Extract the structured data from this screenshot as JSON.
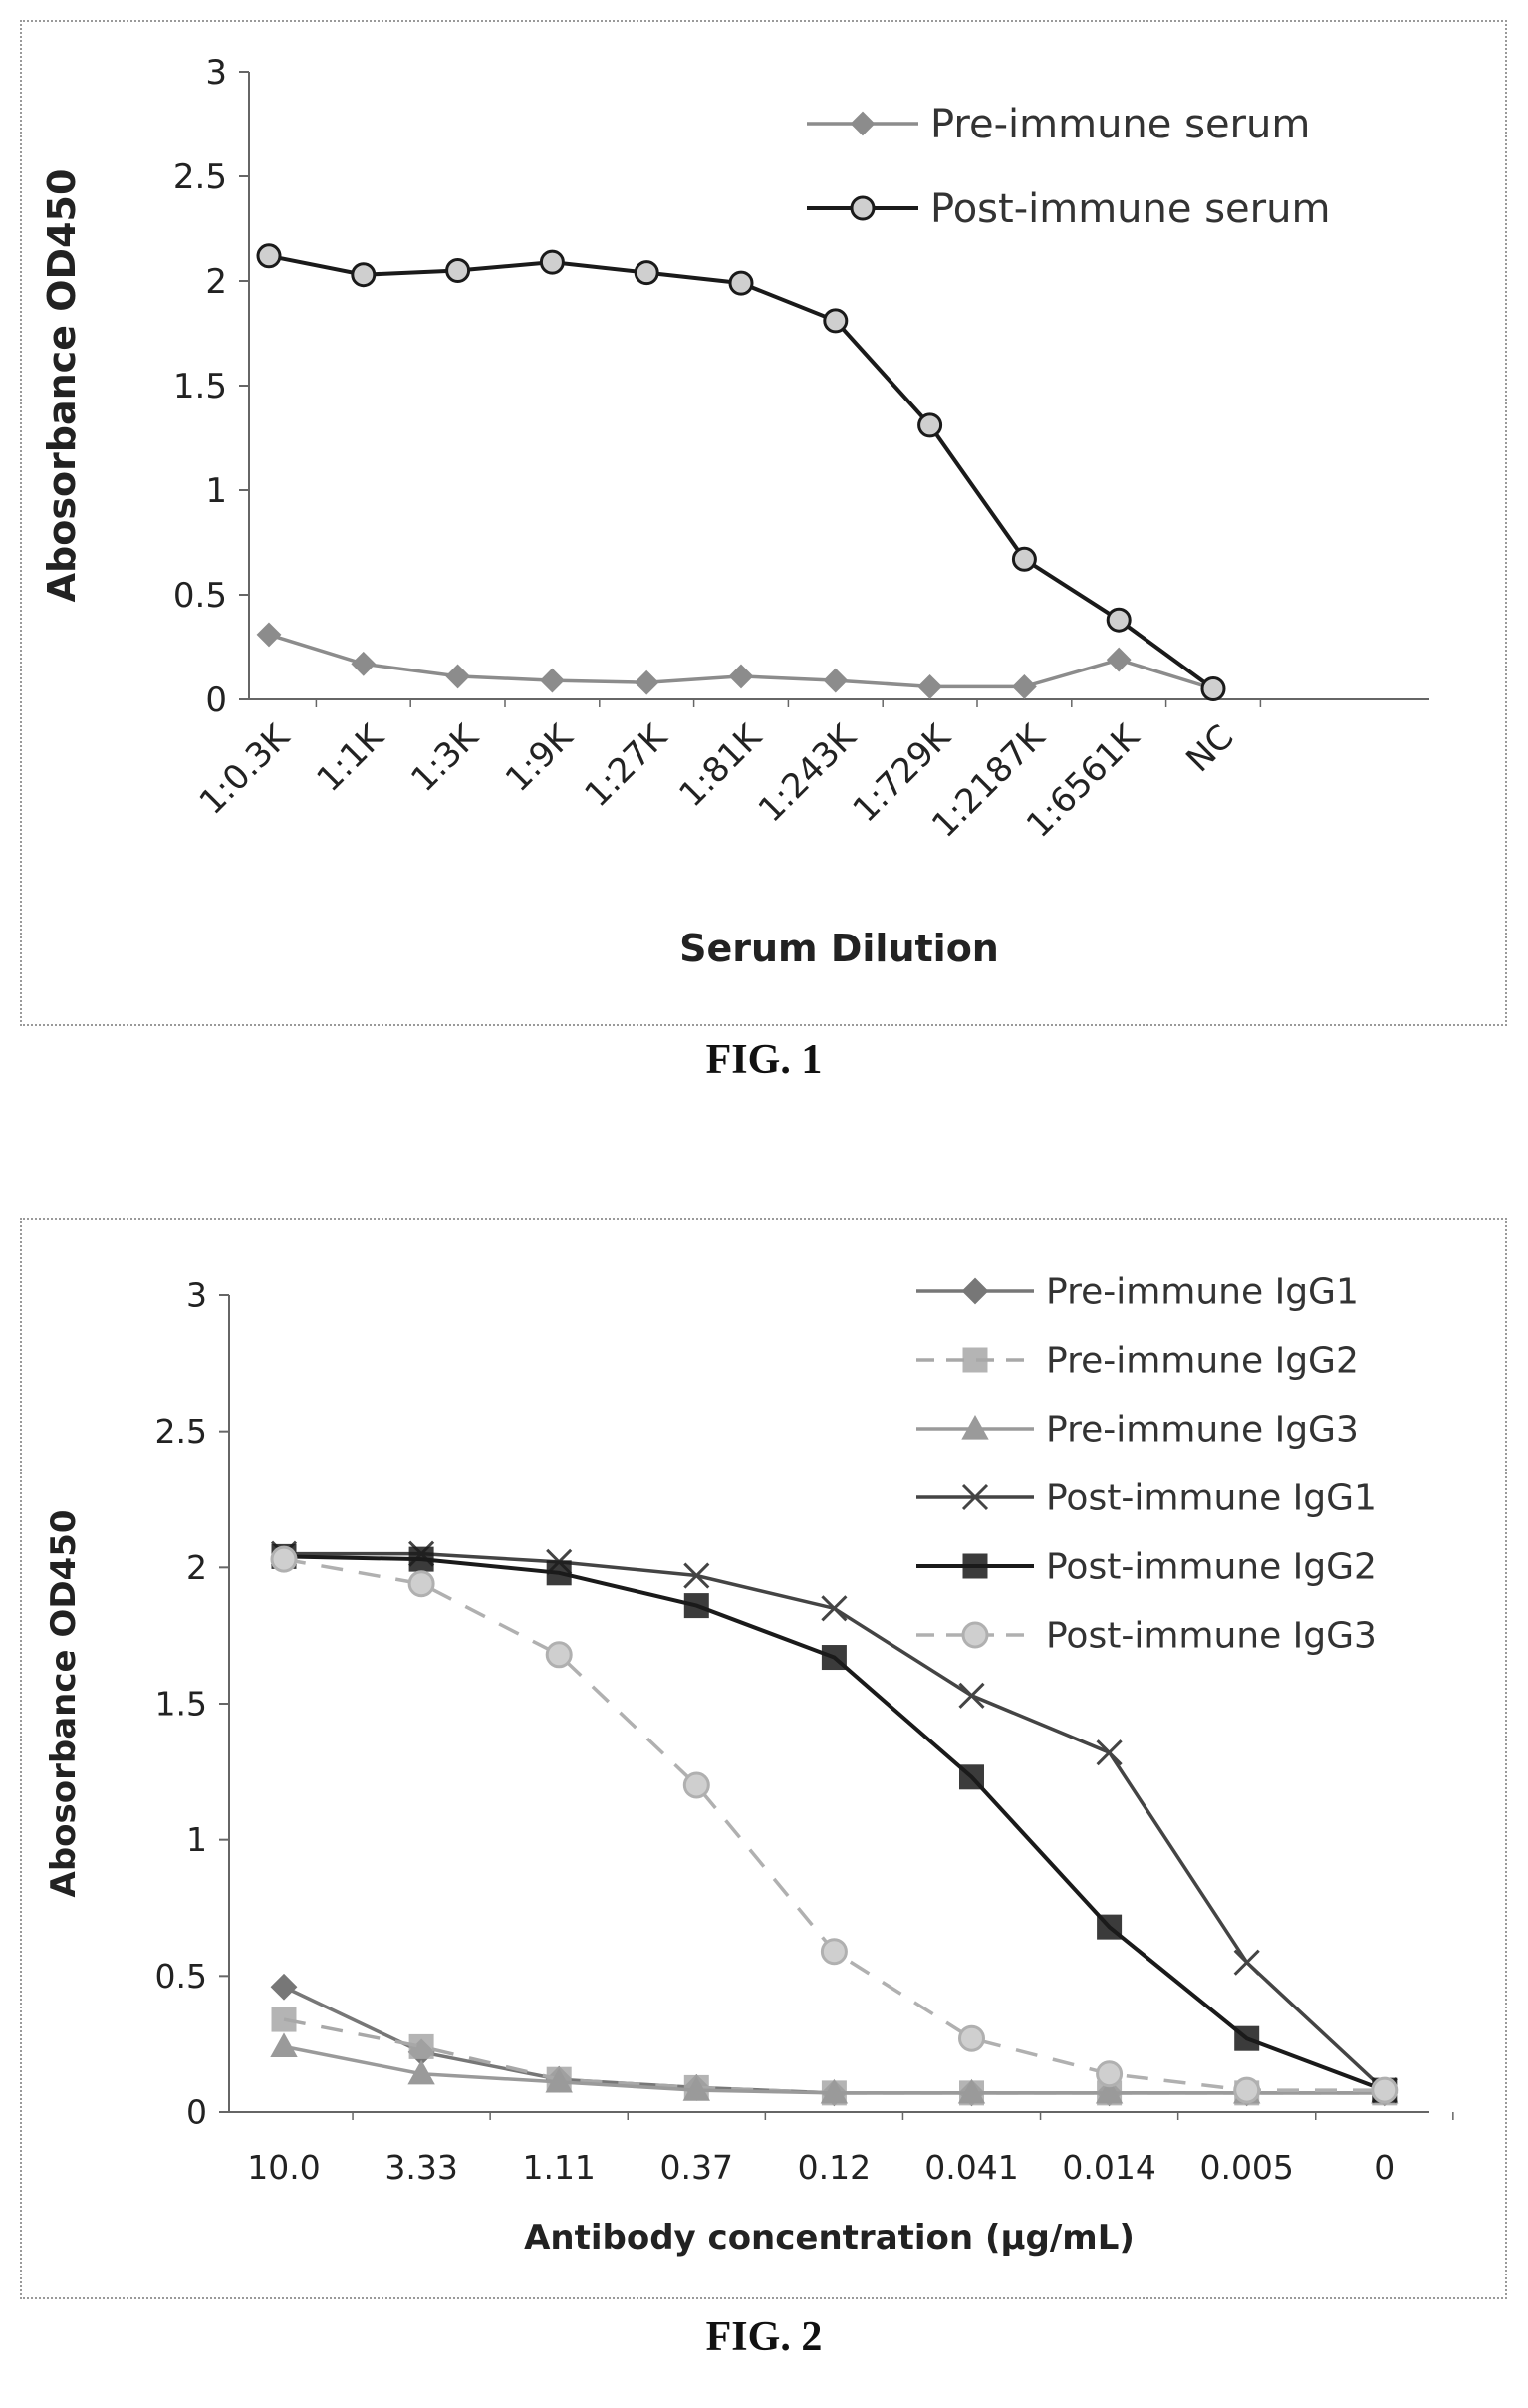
{
  "figures": [
    {
      "caption": "FIG. 1"
    },
    {
      "caption": "FIG. 2"
    }
  ],
  "chart_data": [
    {
      "type": "line",
      "title": "",
      "xlabel": "Serum Dilution",
      "ylabel": "Abosorbance OD450",
      "categories": [
        "1:0.3K",
        "1:1K",
        "1:3K",
        "1:9K",
        "1:27K",
        "1:81K",
        "1:243K",
        "1:729K",
        "1:2187K",
        "1:6561K",
        "NC"
      ],
      "yticks": [
        "0",
        "0.5",
        "1",
        "1.5",
        "2",
        "2.5",
        "3"
      ],
      "ylim": [
        0,
        3
      ],
      "grid": false,
      "legend_position": "top-right",
      "series": [
        {
          "name": "Pre-immune serum",
          "values": [
            0.31,
            0.17,
            0.11,
            0.09,
            0.08,
            0.11,
            0.09,
            0.06,
            0.06,
            0.19,
            0.05
          ],
          "color": "#8c8c8c",
          "marker": "diamond",
          "dash": "solid"
        },
        {
          "name": "Post-immune serum",
          "values": [
            2.12,
            2.03,
            2.05,
            2.09,
            2.04,
            1.99,
            1.81,
            1.31,
            0.67,
            0.38,
            0.05
          ],
          "color": "#1a1a1a",
          "marker": "circle",
          "dash": "solid"
        }
      ]
    },
    {
      "type": "line",
      "title": "",
      "xlabel": "Antibody concentration (µg/mL)",
      "ylabel": "Abosorbance OD450",
      "categories": [
        "10.0",
        "3.33",
        "1.11",
        "0.37",
        "0.12",
        "0.041",
        "0.014",
        "0.005",
        "0"
      ],
      "yticks": [
        "0",
        "0.5",
        "1",
        "1.5",
        "2",
        "2.5",
        "3"
      ],
      "ylim": [
        0,
        3
      ],
      "grid": false,
      "legend_position": "top-right",
      "series": [
        {
          "name": "Pre-immune IgG1",
          "values": [
            0.46,
            0.22,
            0.12,
            0.09,
            0.07,
            0.07,
            0.07,
            0.07,
            0.07
          ],
          "color": "#777777",
          "marker": "diamond",
          "dash": "solid"
        },
        {
          "name": "Pre-immune IgG2",
          "values": [
            0.34,
            0.24,
            0.12,
            0.09,
            0.07,
            0.07,
            0.07,
            0.07,
            0.07
          ],
          "color": "#a8a8a8",
          "marker": "square",
          "dash": "dashed"
        },
        {
          "name": "Pre-immune IgG3",
          "values": [
            0.24,
            0.14,
            0.11,
            0.08,
            0.07,
            0.07,
            0.07,
            0.07,
            0.07
          ],
          "color": "#9a9a9a",
          "marker": "triangle",
          "dash": "solid"
        },
        {
          "name": "Post-immune IgG1",
          "values": [
            2.05,
            2.05,
            2.02,
            1.97,
            1.85,
            1.53,
            1.32,
            0.55,
            0.08
          ],
          "color": "#444444",
          "marker": "x",
          "dash": "solid"
        },
        {
          "name": "Post-immune IgG2",
          "values": [
            2.04,
            2.03,
            1.98,
            1.86,
            1.67,
            1.23,
            0.68,
            0.27,
            0.08
          ],
          "color": "#1a1a1a",
          "marker": "square",
          "dash": "solid"
        },
        {
          "name": "Post-immune IgG3",
          "values": [
            2.03,
            1.94,
            1.68,
            1.2,
            0.59,
            0.27,
            0.14,
            0.08,
            0.08
          ],
          "color": "#b0b0b0",
          "marker": "circle",
          "dash": "dashed"
        }
      ]
    }
  ]
}
